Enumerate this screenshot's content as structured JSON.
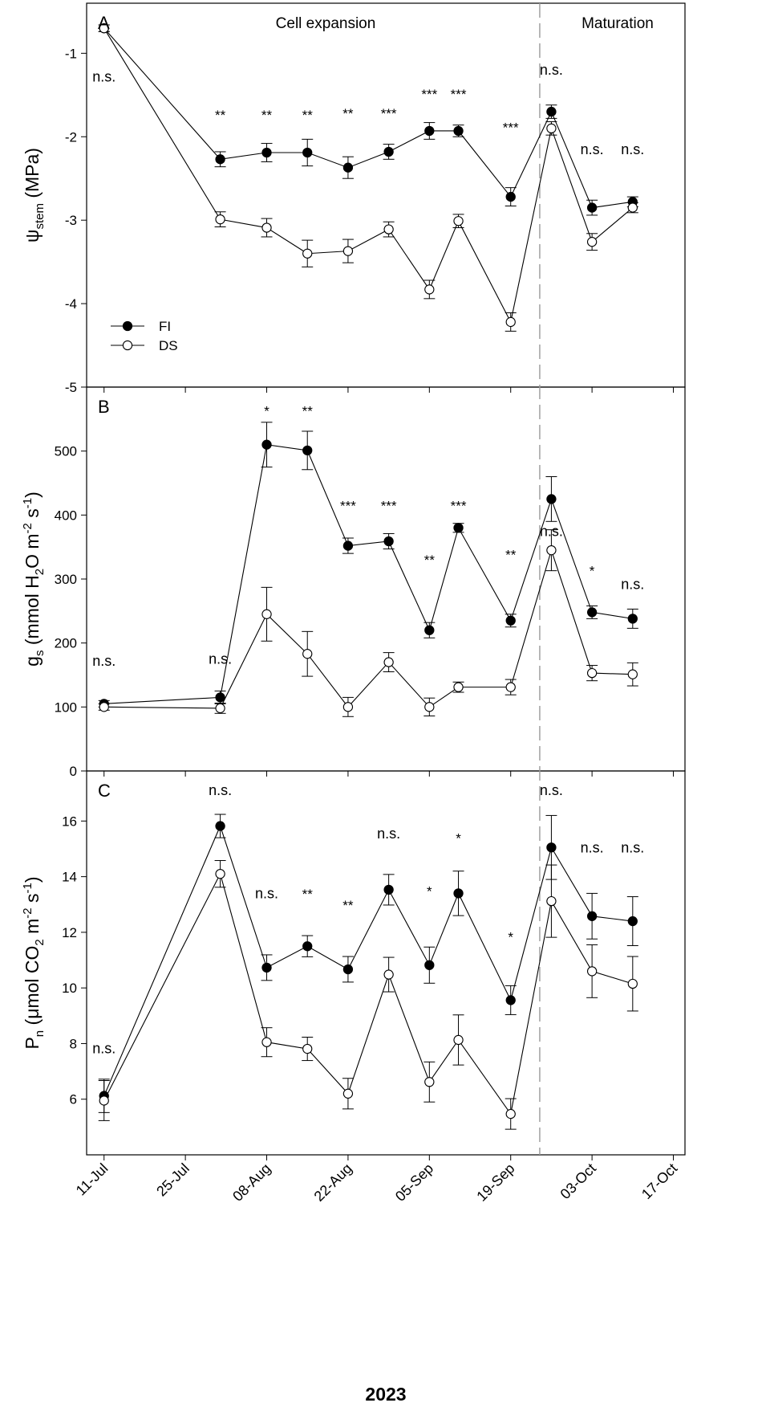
{
  "figure": {
    "xlabel": "2023",
    "x_ticks": [
      {
        "day": 0,
        "label": "11-Jul"
      },
      {
        "day": 14,
        "label": "25-Jul"
      },
      {
        "day": 28,
        "label": "08-Aug"
      },
      {
        "day": 42,
        "label": "22-Aug"
      },
      {
        "day": 56,
        "label": "05-Sep"
      },
      {
        "day": 70,
        "label": "19-Sep"
      },
      {
        "day": 84,
        "label": "03-Oct"
      },
      {
        "day": 98,
        "label": "17-Oct"
      }
    ],
    "xlim": [
      -3,
      100
    ],
    "divider_day": 75,
    "stage_labels": [
      "Cell expansion",
      "Maturation"
    ],
    "legend": [
      {
        "name": "FI",
        "fill": "#000000"
      },
      {
        "name": "DS",
        "fill": "#ffffff"
      }
    ]
  },
  "chart_data": [
    {
      "type": "line",
      "panel": "A",
      "ylabel": "ψstem (MPa)",
      "ylabel_main": "ψ",
      "ylabel_sub": "stem",
      "ylabel_unit": " (MPa)",
      "ylim": [
        -5,
        -0.4
      ],
      "yticks": [
        -1,
        -2,
        -3,
        -4,
        -5
      ],
      "x": [
        0,
        20,
        28,
        35,
        42,
        49,
        56,
        61,
        70,
        77,
        84,
        91
      ],
      "series": [
        {
          "name": "FI",
          "values": [
            -0.7,
            -2.27,
            -2.19,
            -2.19,
            -2.37,
            -2.18,
            -1.93,
            -1.93,
            -2.72,
            -1.7,
            -2.85,
            -2.78
          ],
          "errors": [
            0.04,
            0.09,
            0.11,
            0.16,
            0.13,
            0.09,
            0.1,
            0.07,
            0.11,
            0.08,
            0.09,
            0.06
          ]
        },
        {
          "name": "DS",
          "values": [
            -0.7,
            -2.99,
            -3.09,
            -3.4,
            -3.37,
            -3.11,
            -3.83,
            -3.01,
            -4.22,
            -1.9,
            -3.26,
            -2.85
          ],
          "errors": [
            0.04,
            0.09,
            0.11,
            0.16,
            0.14,
            0.09,
            0.11,
            0.08,
            0.11,
            0.08,
            0.1,
            0.06
          ]
        }
      ],
      "annotations": [
        {
          "day": 0,
          "text": "n.s.",
          "y": -1.28
        },
        {
          "day": 20,
          "text": "**",
          "y": -1.7
        },
        {
          "day": 28,
          "text": "**",
          "y": -1.7
        },
        {
          "day": 35,
          "text": "**",
          "y": -1.7
        },
        {
          "day": 42,
          "text": "**",
          "y": -1.68
        },
        {
          "day": 49,
          "text": "***",
          "y": -1.68
        },
        {
          "day": 56,
          "text": "***",
          "y": -1.45
        },
        {
          "day": 61,
          "text": "***",
          "y": -1.45
        },
        {
          "day": 70,
          "text": "***",
          "y": -1.85
        },
        {
          "day": 77,
          "text": "n.s.",
          "y": -1.2
        },
        {
          "day": 84,
          "text": "n.s.",
          "y": -2.15
        },
        {
          "day": 91,
          "text": "n.s.",
          "y": -2.15
        }
      ]
    },
    {
      "type": "line",
      "panel": "B",
      "ylabel": "gs (mmol H2O m-2 s-1)",
      "ylabel_main": "g",
      "ylabel_sub": "s",
      "ylabel_unit": " (mmol H",
      "ylabel_unit2": "O m",
      "ylabel_unit3": " s",
      "ylim": [
        0,
        600
      ],
      "yticks": [
        0,
        100,
        200,
        300,
        400,
        500
      ],
      "x": [
        0,
        20,
        28,
        35,
        42,
        49,
        56,
        61,
        70,
        77,
        84,
        91
      ],
      "series": [
        {
          "name": "FI",
          "values": [
            105,
            115,
            510,
            501,
            352,
            359,
            220,
            380,
            235,
            425,
            248,
            238
          ],
          "errors": [
            5,
            10,
            35,
            30,
            12,
            12,
            12,
            7,
            10,
            35,
            10,
            15
          ]
        },
        {
          "name": "DS",
          "values": [
            100,
            98,
            245,
            183,
            100,
            170,
            100,
            131,
            131,
            345,
            153,
            151
          ],
          "errors": [
            5,
            8,
            42,
            35,
            15,
            15,
            14,
            8,
            12,
            32,
            12,
            18
          ]
        }
      ],
      "annotations": [
        {
          "day": 0,
          "text": "n.s.",
          "y": 172
        },
        {
          "day": 20,
          "text": "n.s.",
          "y": 175
        },
        {
          "day": 28,
          "text": "*",
          "y": 568
        },
        {
          "day": 35,
          "text": "**",
          "y": 568
        },
        {
          "day": 42,
          "text": "***",
          "y": 420
        },
        {
          "day": 49,
          "text": "***",
          "y": 420
        },
        {
          "day": 56,
          "text": "**",
          "y": 335
        },
        {
          "day": 61,
          "text": "***",
          "y": 420
        },
        {
          "day": 70,
          "text": "**",
          "y": 343
        },
        {
          "day": 77,
          "text": "n.s.",
          "y": 375
        },
        {
          "day": 84,
          "text": "*",
          "y": 318
        },
        {
          "day": 91,
          "text": "n.s.",
          "y": 292
        }
      ]
    },
    {
      "type": "line",
      "panel": "C",
      "ylabel": "Pn (μmol CO2 m-2 s-1)",
      "ylabel_main": "P",
      "ylabel_sub": "n",
      "ylabel_unit": " (μmol CO",
      "ylabel_unit2": " m",
      "ylabel_unit3": " s",
      "ylim": [
        4,
        17.8
      ],
      "yticks": [
        6,
        8,
        10,
        12,
        14,
        16
      ],
      "x": [
        0,
        20,
        28,
        35,
        42,
        49,
        56,
        61,
        70,
        77,
        84,
        91
      ],
      "series": [
        {
          "name": "FI",
          "values": [
            6.12,
            15.82,
            10.73,
            11.5,
            10.67,
            13.53,
            10.82,
            13.4,
            9.56,
            15.05,
            12.58,
            12.4
          ],
          "errors": [
            0.6,
            0.42,
            0.46,
            0.38,
            0.46,
            0.55,
            0.65,
            0.8,
            0.52,
            1.15,
            0.82,
            0.88
          ]
        },
        {
          "name": "DS",
          "values": [
            5.95,
            14.1,
            8.05,
            7.81,
            6.2,
            10.48,
            6.62,
            8.13,
            5.47,
            13.12,
            10.6,
            10.15
          ],
          "errors": [
            0.72,
            0.48,
            0.52,
            0.42,
            0.55,
            0.62,
            0.72,
            0.9,
            0.55,
            1.3,
            0.95,
            0.98
          ]
        }
      ],
      "annotations": [
        {
          "day": 0,
          "text": "n.s.",
          "y": 7.82
        },
        {
          "day": 20,
          "text": "n.s.",
          "y": 17.1
        },
        {
          "day": 28,
          "text": "n.s.",
          "y": 13.4
        },
        {
          "day": 35,
          "text": "**",
          "y": 13.5
        },
        {
          "day": 42,
          "text": "**",
          "y": 13.1
        },
        {
          "day": 49,
          "text": "n.s.",
          "y": 15.55
        },
        {
          "day": 56,
          "text": "*",
          "y": 13.6
        },
        {
          "day": 61,
          "text": "*",
          "y": 15.5
        },
        {
          "day": 70,
          "text": "*",
          "y": 11.95
        },
        {
          "day": 77,
          "text": "n.s.",
          "y": 17.1
        },
        {
          "day": 84,
          "text": "n.s.",
          "y": 15.05
        },
        {
          "day": 91,
          "text": "n.s.",
          "y": 15.05
        }
      ]
    }
  ]
}
